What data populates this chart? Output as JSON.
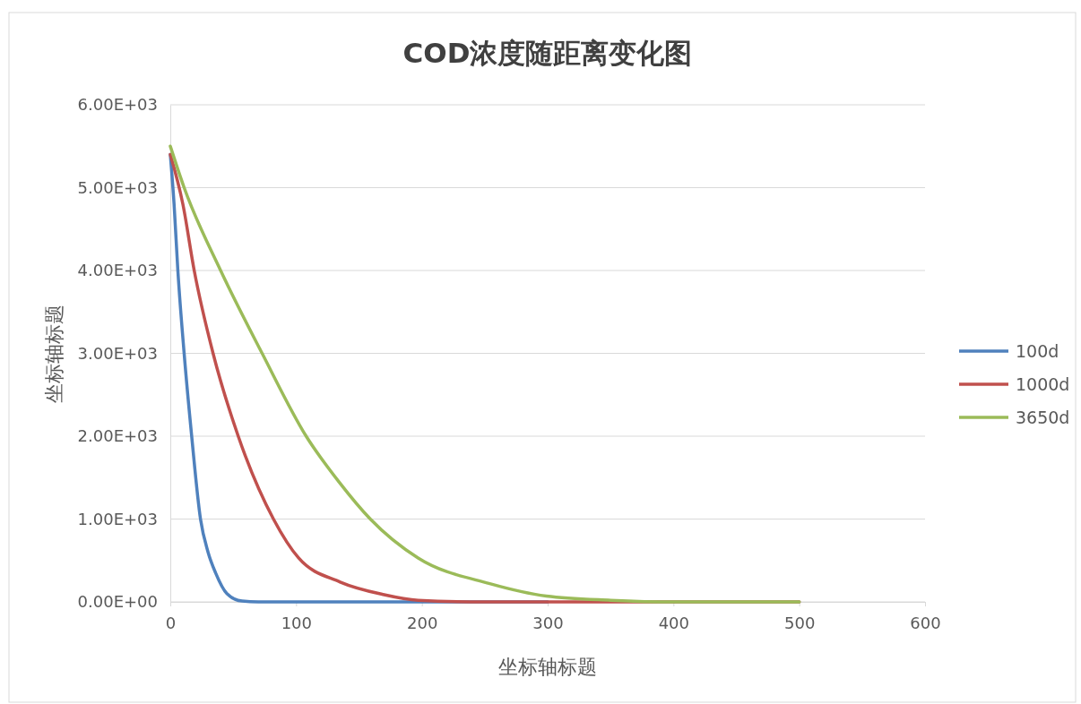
{
  "chart_data": {
    "type": "line",
    "title": "COD浓度随距离变化图",
    "xlabel": "坐标轴标题",
    "ylabel": "坐标轴标题",
    "xlim": [
      0,
      600
    ],
    "xticks": [
      0,
      100,
      200,
      300,
      400,
      500,
      600
    ],
    "ylim": [
      0,
      6000
    ],
    "yticks": [
      {
        "value": 0,
        "label": "0.00E+00"
      },
      {
        "value": 1000,
        "label": "1.00E+03"
      },
      {
        "value": 2000,
        "label": "2.00E+03"
      },
      {
        "value": 3000,
        "label": "3.00E+03"
      },
      {
        "value": 4000,
        "label": "4.00E+03"
      },
      {
        "value": 5000,
        "label": "5.00E+03"
      },
      {
        "value": 6000,
        "label": "6.00E+03"
      }
    ],
    "grid": "y",
    "legend": "right",
    "marker": "none",
    "line_style": "solid",
    "series": [
      {
        "name": "100d",
        "color": "#4f81bd",
        "x": [
          0,
          3,
          6,
          11,
          17,
          24,
          30,
          36,
          45,
          57,
          70,
          100,
          200,
          300
        ],
        "values": [
          5400,
          4800,
          4000,
          3000,
          2000,
          1000,
          600,
          350,
          100,
          10,
          0,
          0,
          0,
          0
        ]
      },
      {
        "name": "1000d",
        "color": "#c0504d",
        "x": [
          0,
          10,
          19,
          34,
          54,
          82,
          102,
          135,
          169,
          197,
          250,
          350,
          500
        ],
        "values": [
          5400,
          4800,
          4000,
          3000,
          2000,
          1000,
          530,
          240,
          90,
          20,
          0,
          0,
          0
        ]
      },
      {
        "name": "3650d",
        "color": "#9bbb59",
        "x": [
          0,
          11,
          40,
          73,
          108,
          134,
          159,
          197,
          254,
          299,
          350,
          400,
          450,
          500
        ],
        "values": [
          5500,
          5000,
          4000,
          3000,
          2000,
          1450,
          1000,
          530,
          220,
          70,
          20,
          0,
          0,
          0
        ]
      }
    ]
  }
}
